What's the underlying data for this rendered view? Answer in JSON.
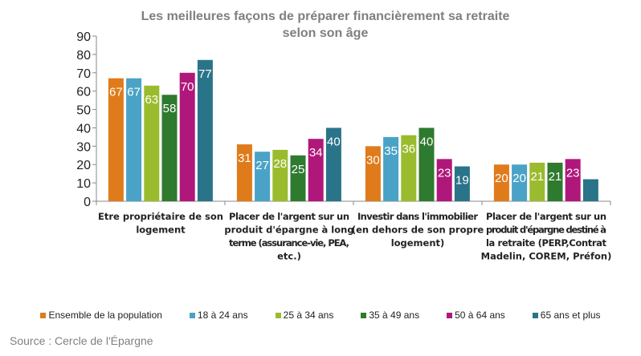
{
  "chart_data": {
    "type": "bar",
    "title": "Les meilleures façons de préparer financièrement sa retraite selon son âge",
    "title_lines": [
      "Les meilleures façons de préparer financièrement sa retraite",
      "selon son âge"
    ],
    "categories": [
      [
        "Etre propriétaire de son",
        "logement"
      ],
      [
        "Placer de l'argent sur un",
        "produit d'épargne à long",
        "terme (assurance-vie, PEA,",
        "etc.)"
      ],
      [
        "Investir dans l'immobilier",
        "(en dehors de son propre",
        "logement)"
      ],
      [
        "Placer de l'argent sur un",
        "produit d'épargne destiné à",
        "la retraite (PERP,Contrat",
        "Madelin, COREM, Préfon)"
      ]
    ],
    "series": [
      {
        "name": "Ensemble de la population",
        "color": "#E07B1B",
        "values": [
          67,
          31,
          30,
          20
        ],
        "labels": [
          true,
          true,
          true,
          true
        ]
      },
      {
        "name": "18 à 24 ans",
        "color": "#4AA3C6",
        "values": [
          67,
          27,
          35,
          20
        ],
        "labels": [
          true,
          true,
          true,
          true
        ]
      },
      {
        "name": "25 à 34 ans",
        "color": "#9BBB2E",
        "values": [
          63,
          28,
          36,
          21
        ],
        "labels": [
          true,
          true,
          true,
          true
        ]
      },
      {
        "name": "35 à 49 ans",
        "color": "#2E7A2E",
        "values": [
          58,
          25,
          40,
          21
        ],
        "labels": [
          true,
          true,
          true,
          true
        ]
      },
      {
        "name": "50 à 64 ans",
        "color": "#B0177A",
        "values": [
          70,
          34,
          23,
          23
        ],
        "labels": [
          true,
          true,
          true,
          true
        ]
      },
      {
        "name": "65 ans et plus",
        "color": "#2A7489",
        "values": [
          77,
          40,
          19,
          12
        ],
        "labels": [
          true,
          true,
          true,
          false
        ]
      }
    ],
    "ylim": [
      0,
      90
    ],
    "yticks": [
      0,
      10,
      20,
      30,
      40,
      50,
      60,
      70,
      80,
      90
    ],
    "grid": false,
    "legend": "bottom"
  },
  "source": "Source : Cercle  de l'Épargne"
}
